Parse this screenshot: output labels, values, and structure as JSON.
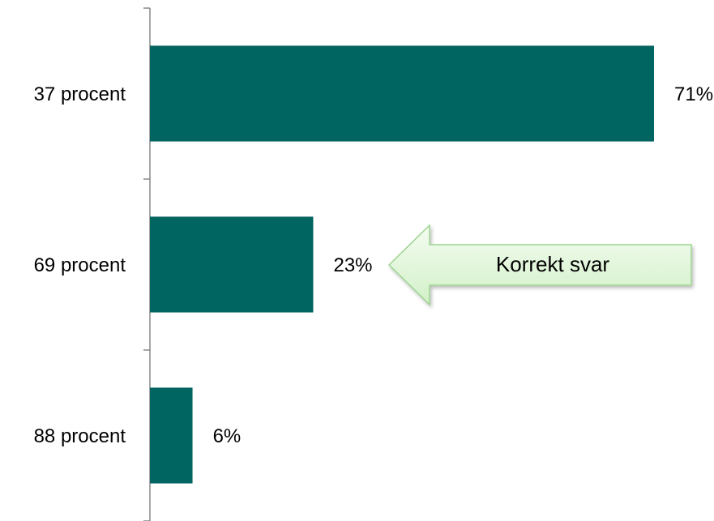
{
  "chart_data": {
    "type": "barh",
    "categories": [
      "37 procent",
      "69 procent",
      "88 procent"
    ],
    "values": [
      71,
      23,
      6
    ],
    "value_labels": [
      "71%",
      "23%",
      "6%"
    ],
    "color": "#006461",
    "annotation": "Korrekt svar"
  }
}
